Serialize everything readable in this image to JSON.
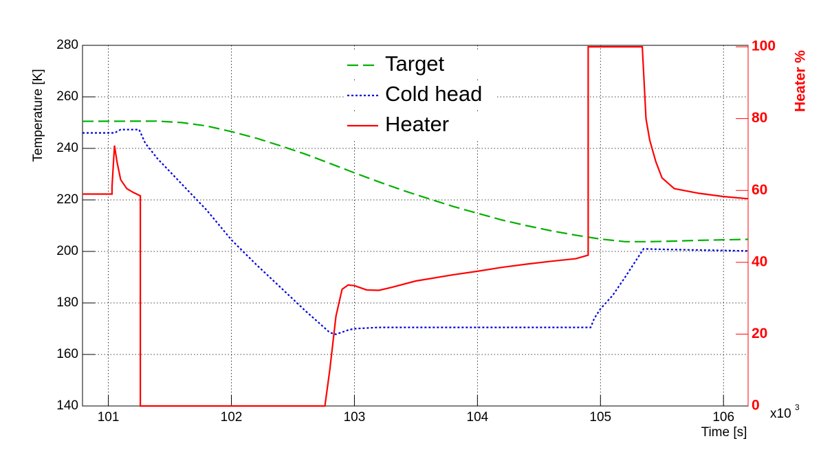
{
  "chart_data": {
    "type": "line",
    "xlabel": "Time [s]",
    "ylabel": "Temperature [K]",
    "y2label": "Heater %",
    "x_multiplier": {
      "base": "x10",
      "exponent": "3"
    },
    "xlim": [
      100.79,
      106.2
    ],
    "xticks": [
      101,
      102,
      103,
      104,
      105,
      106
    ],
    "ylim": [
      140,
      280
    ],
    "yticks": [
      140,
      160,
      180,
      200,
      220,
      240,
      260,
      280
    ],
    "y2lim": [
      0,
      100.4
    ],
    "y2ticks": [
      0,
      20,
      40,
      60,
      80,
      100
    ],
    "grid": true,
    "legend": "top",
    "y2color": "#ff0000",
    "series": [
      {
        "name": "Target",
        "color": "#00b000",
        "style": "dashed",
        "x": [
          100.79,
          101.4,
          101.6,
          101.8,
          102.0,
          102.2,
          102.4,
          102.6,
          102.8,
          103.0,
          103.2,
          103.4,
          103.6,
          103.8,
          104.0,
          104.2,
          104.4,
          104.6,
          104.8,
          105.0,
          105.2,
          105.4,
          105.6,
          105.8,
          106.0,
          106.2
        ],
        "values": [
          250.5,
          250.6,
          250,
          248.7,
          246.5,
          244,
          241,
          237.8,
          234.2,
          230.5,
          227,
          223.6,
          220.5,
          217.5,
          214.8,
          212.2,
          210,
          208,
          206.3,
          204.8,
          203.8,
          203.8,
          204,
          204.3,
          204.5,
          204.7
        ]
      },
      {
        "name": "Cold head",
        "color": "#0000dd",
        "style": "dotted",
        "x": [
          100.79,
          101.05,
          101.1,
          101.25,
          101.3,
          101.4,
          101.6,
          101.8,
          102.0,
          102.2,
          102.4,
          102.6,
          102.8,
          102.85,
          102.95,
          103.0,
          103.2,
          104.92,
          104.95,
          105.0,
          105.1,
          105.2,
          105.35,
          105.5,
          106.2
        ],
        "values": [
          246,
          246,
          247.3,
          247.3,
          242,
          236,
          226,
          216,
          204.5,
          195,
          186,
          177,
          168.5,
          167.8,
          169.5,
          170,
          170.5,
          170.5,
          174,
          177.7,
          183,
          190,
          201,
          200.8,
          200.2
        ]
      },
      {
        "name": "Heater",
        "color": "#ff0000",
        "style": "solid",
        "axis": "y2",
        "x": [
          100.79,
          101.03,
          101.03,
          101.05,
          101.07,
          101.1,
          101.15,
          101.2,
          101.26,
          101.26,
          102.76,
          102.8,
          102.85,
          102.9,
          102.95,
          103.0,
          103.1,
          103.2,
          103.3,
          103.5,
          103.8,
          104.0,
          104.2,
          104.4,
          104.6,
          104.8,
          104.9,
          104.9,
          105.34,
          105.37,
          105.4,
          105.45,
          105.5,
          105.6,
          105.8,
          106.0,
          106.2
        ],
        "values": [
          59,
          59,
          61,
          72.5,
          68,
          63,
          60.5,
          59.5,
          58.5,
          0,
          0,
          10,
          25,
          32.5,
          33.7,
          33.5,
          32.3,
          32.2,
          33,
          34.8,
          36.5,
          37.5,
          38.6,
          39.5,
          40.3,
          41,
          42,
          100,
          100,
          80,
          74,
          68,
          63.5,
          60.5,
          59.2,
          58.3,
          57.7
        ]
      }
    ]
  }
}
